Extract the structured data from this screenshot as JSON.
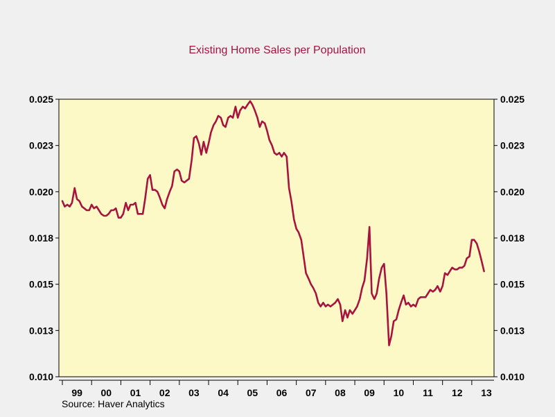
{
  "chart_data": {
    "type": "line",
    "title": "Existing Home Sales per Population",
    "source": "Source: Haver Analytics",
    "xlabel": "",
    "ylabel": "",
    "x_start": 1999.0,
    "x_end": 2013.5,
    "xlim": [
      1998.9,
      2013.5
    ],
    "ylim": [
      0.01,
      0.025
    ],
    "y_ticks": [
      0.01,
      0.0125,
      0.015,
      0.0175,
      0.02,
      0.0225,
      0.025
    ],
    "y_tick_labels": [
      "0.010",
      "0.013",
      "0.015",
      "0.018",
      "0.020",
      "0.023",
      "0.025"
    ],
    "x_ticks": [
      {
        "year": 1999,
        "label": "99"
      },
      {
        "year": 2000,
        "label": "00"
      },
      {
        "year": 2001,
        "label": "01"
      },
      {
        "year": 2002,
        "label": "02"
      },
      {
        "year": 2003,
        "label": "03"
      },
      {
        "year": 2004,
        "label": "04"
      },
      {
        "year": 2005,
        "label": "05"
      },
      {
        "year": 2006,
        "label": "06"
      },
      {
        "year": 2007,
        "label": "07"
      },
      {
        "year": 2008,
        "label": "08"
      },
      {
        "year": 2009,
        "label": "09"
      },
      {
        "year": 2010,
        "label": "10"
      },
      {
        "year": 2011,
        "label": "11"
      },
      {
        "year": 2012,
        "label": "12"
      },
      {
        "year": 2013,
        "label": "13"
      }
    ],
    "grid": false,
    "legend": "none",
    "series": [
      {
        "color": "#a8123e",
        "points": [
          [
            1999.0,
            0.0195
          ],
          [
            1999.08,
            0.0192
          ],
          [
            1999.17,
            0.0193
          ],
          [
            1999.25,
            0.0192
          ],
          [
            1999.33,
            0.0194
          ],
          [
            1999.42,
            0.0202
          ],
          [
            1999.5,
            0.0196
          ],
          [
            1999.58,
            0.0195
          ],
          [
            1999.67,
            0.0192
          ],
          [
            1999.75,
            0.0191
          ],
          [
            1999.83,
            0.019
          ],
          [
            1999.92,
            0.019
          ],
          [
            2000.0,
            0.0193
          ],
          [
            2000.08,
            0.0191
          ],
          [
            2000.17,
            0.0192
          ],
          [
            2000.25,
            0.019
          ],
          [
            2000.33,
            0.0188
          ],
          [
            2000.42,
            0.0187
          ],
          [
            2000.5,
            0.0187
          ],
          [
            2000.58,
            0.0188
          ],
          [
            2000.67,
            0.019
          ],
          [
            2000.75,
            0.019
          ],
          [
            2000.83,
            0.0191
          ],
          [
            2000.92,
            0.0186
          ],
          [
            2001.0,
            0.0186
          ],
          [
            2001.08,
            0.0188
          ],
          [
            2001.17,
            0.0194
          ],
          [
            2001.25,
            0.019
          ],
          [
            2001.33,
            0.0193
          ],
          [
            2001.42,
            0.0193
          ],
          [
            2001.5,
            0.0194
          ],
          [
            2001.58,
            0.0188
          ],
          [
            2001.67,
            0.0188
          ],
          [
            2001.75,
            0.0188
          ],
          [
            2001.83,
            0.0196
          ],
          [
            2001.92,
            0.0207
          ],
          [
            2002.0,
            0.0209
          ],
          [
            2002.08,
            0.0201
          ],
          [
            2002.17,
            0.0201
          ],
          [
            2002.25,
            0.02
          ],
          [
            2002.33,
            0.0197
          ],
          [
            2002.42,
            0.0193
          ],
          [
            2002.5,
            0.0191
          ],
          [
            2002.58,
            0.0196
          ],
          [
            2002.67,
            0.02
          ],
          [
            2002.75,
            0.0203
          ],
          [
            2002.83,
            0.0211
          ],
          [
            2002.92,
            0.0212
          ],
          [
            2003.0,
            0.0211
          ],
          [
            2003.08,
            0.0206
          ],
          [
            2003.17,
            0.0205
          ],
          [
            2003.25,
            0.0206
          ],
          [
            2003.33,
            0.0207
          ],
          [
            2003.42,
            0.0217
          ],
          [
            2003.5,
            0.0229
          ],
          [
            2003.58,
            0.023
          ],
          [
            2003.67,
            0.0226
          ],
          [
            2003.75,
            0.022
          ],
          [
            2003.83,
            0.0227
          ],
          [
            2003.92,
            0.0221
          ],
          [
            2004.0,
            0.0226
          ],
          [
            2004.08,
            0.0232
          ],
          [
            2004.17,
            0.0236
          ],
          [
            2004.25,
            0.0238
          ],
          [
            2004.33,
            0.0241
          ],
          [
            2004.42,
            0.024
          ],
          [
            2004.5,
            0.0236
          ],
          [
            2004.58,
            0.0235
          ],
          [
            2004.67,
            0.024
          ],
          [
            2004.75,
            0.0241
          ],
          [
            2004.83,
            0.024
          ],
          [
            2004.92,
            0.0246
          ],
          [
            2005.0,
            0.024
          ],
          [
            2005.08,
            0.0244
          ],
          [
            2005.17,
            0.0246
          ],
          [
            2005.25,
            0.0245
          ],
          [
            2005.33,
            0.0247
          ],
          [
            2005.42,
            0.0249
          ],
          [
            2005.5,
            0.0247
          ],
          [
            2005.58,
            0.0244
          ],
          [
            2005.67,
            0.024
          ],
          [
            2005.75,
            0.0235
          ],
          [
            2005.83,
            0.0238
          ],
          [
            2005.92,
            0.0237
          ],
          [
            2006.0,
            0.0233
          ],
          [
            2006.08,
            0.0228
          ],
          [
            2006.17,
            0.0225
          ],
          [
            2006.25,
            0.0221
          ],
          [
            2006.33,
            0.022
          ],
          [
            2006.42,
            0.0221
          ],
          [
            2006.5,
            0.0219
          ],
          [
            2006.58,
            0.0221
          ],
          [
            2006.67,
            0.0219
          ],
          [
            2006.75,
            0.0202
          ],
          [
            2006.83,
            0.0195
          ],
          [
            2006.92,
            0.0185
          ],
          [
            2007.0,
            0.018
          ],
          [
            2007.08,
            0.0178
          ],
          [
            2007.17,
            0.0174
          ],
          [
            2007.25,
            0.0165
          ],
          [
            2007.33,
            0.0156
          ],
          [
            2007.42,
            0.0153
          ],
          [
            2007.5,
            0.015
          ],
          [
            2007.58,
            0.0148
          ],
          [
            2007.67,
            0.0145
          ],
          [
            2007.75,
            0.014
          ],
          [
            2007.83,
            0.0138
          ],
          [
            2007.92,
            0.014
          ],
          [
            2008.0,
            0.0138
          ],
          [
            2008.08,
            0.0139
          ],
          [
            2008.17,
            0.0138
          ],
          [
            2008.25,
            0.0139
          ],
          [
            2008.33,
            0.014
          ],
          [
            2008.42,
            0.0142
          ],
          [
            2008.5,
            0.0139
          ],
          [
            2008.58,
            0.013
          ],
          [
            2008.67,
            0.0136
          ],
          [
            2008.75,
            0.0132
          ],
          [
            2008.83,
            0.0136
          ],
          [
            2008.92,
            0.0134
          ],
          [
            2009.0,
            0.0136
          ],
          [
            2009.08,
            0.0138
          ],
          [
            2009.17,
            0.0142
          ],
          [
            2009.25,
            0.0148
          ],
          [
            2009.33,
            0.0152
          ],
          [
            2009.42,
            0.0164
          ],
          [
            2009.5,
            0.0181
          ],
          [
            2009.58,
            0.0145
          ],
          [
            2009.67,
            0.0142
          ],
          [
            2009.75,
            0.0145
          ],
          [
            2009.83,
            0.0153
          ],
          [
            2009.92,
            0.0159
          ],
          [
            2010.0,
            0.0161
          ],
          [
            2010.08,
            0.0145
          ],
          [
            2010.17,
            0.0117
          ],
          [
            2010.25,
            0.0122
          ],
          [
            2010.33,
            0.013
          ],
          [
            2010.42,
            0.0131
          ],
          [
            2010.5,
            0.0136
          ],
          [
            2010.58,
            0.014
          ],
          [
            2010.67,
            0.0144
          ],
          [
            2010.75,
            0.0139
          ],
          [
            2010.83,
            0.014
          ],
          [
            2010.92,
            0.0138
          ],
          [
            2011.0,
            0.0139
          ],
          [
            2011.08,
            0.0138
          ],
          [
            2011.17,
            0.0142
          ],
          [
            2011.25,
            0.0143
          ],
          [
            2011.33,
            0.0143
          ],
          [
            2011.42,
            0.0143
          ],
          [
            2011.5,
            0.0145
          ],
          [
            2011.58,
            0.0147
          ],
          [
            2011.67,
            0.0146
          ],
          [
            2011.75,
            0.0147
          ],
          [
            2011.83,
            0.0149
          ],
          [
            2011.92,
            0.0146
          ],
          [
            2012.0,
            0.0149
          ],
          [
            2012.08,
            0.0156
          ],
          [
            2012.17,
            0.0155
          ],
          [
            2012.25,
            0.0157
          ],
          [
            2012.33,
            0.0159
          ],
          [
            2012.42,
            0.0158
          ],
          [
            2012.5,
            0.0158
          ],
          [
            2012.58,
            0.0159
          ],
          [
            2012.67,
            0.0159
          ],
          [
            2012.75,
            0.016
          ],
          [
            2012.83,
            0.0164
          ],
          [
            2012.92,
            0.0165
          ],
          [
            2013.0,
            0.0174
          ],
          [
            2013.08,
            0.0174
          ],
          [
            2013.17,
            0.0172
          ],
          [
            2013.25,
            0.0168
          ],
          [
            2013.33,
            0.0163
          ],
          [
            2013.42,
            0.0157
          ]
        ]
      }
    ]
  }
}
